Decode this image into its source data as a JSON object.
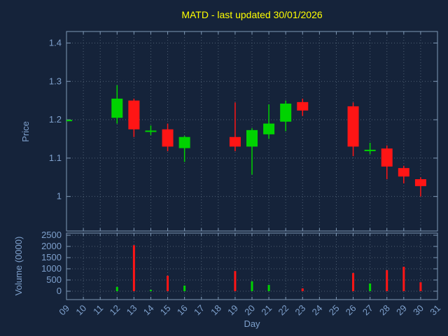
{
  "colors": {
    "background": "#15233a",
    "frame": "#7e98b5",
    "grid": "#4e5f73",
    "text": "#7ea0cc",
    "title": "#ffff00",
    "up": "#00d300",
    "down": "#ff1515"
  },
  "chart_data": {
    "type": "candlestick",
    "title": "MATD - last updated 30/01/2026",
    "xlabel": "Day",
    "x_ticks": [
      "09",
      "10",
      "11",
      "12",
      "13",
      "14",
      "15",
      "16",
      "17",
      "18",
      "19",
      "20",
      "21",
      "22",
      "23",
      "24",
      "25",
      "26",
      "27",
      "28",
      "29",
      "30",
      "31"
    ],
    "price_panel": {
      "ylabel": "Price",
      "y_ticks": [
        1,
        1.1,
        1.2,
        1.3,
        1.4
      ],
      "ylim": [
        0.91,
        1.43
      ],
      "grid": true,
      "candles": [
        {
          "day": 9,
          "open": 1.198,
          "high": 1.2,
          "low": 1.195,
          "close": 1.198
        },
        {
          "day": 12,
          "open": 1.205,
          "high": 1.29,
          "low": 1.19,
          "close": 1.255
        },
        {
          "day": 13,
          "open": 1.25,
          "high": 1.255,
          "low": 1.155,
          "close": 1.175
        },
        {
          "day": 14,
          "open": 1.17,
          "high": 1.185,
          "low": 1.16,
          "close": 1.17
        },
        {
          "day": 15,
          "open": 1.175,
          "high": 1.19,
          "low": 1.118,
          "close": 1.13
        },
        {
          "day": 16,
          "open": 1.126,
          "high": 1.158,
          "low": 1.09,
          "close": 1.155
        },
        {
          "day": 19,
          "open": 1.155,
          "high": 1.245,
          "low": 1.118,
          "close": 1.13
        },
        {
          "day": 20,
          "open": 1.13,
          "high": 1.178,
          "low": 1.057,
          "close": 1.173
        },
        {
          "day": 21,
          "open": 1.162,
          "high": 1.24,
          "low": 1.15,
          "close": 1.19
        },
        {
          "day": 22,
          "open": 1.195,
          "high": 1.25,
          "low": 1.17,
          "close": 1.242
        },
        {
          "day": 23,
          "open": 1.246,
          "high": 1.255,
          "low": 1.21,
          "close": 1.224
        },
        {
          "day": 26,
          "open": 1.235,
          "high": 1.245,
          "low": 1.105,
          "close": 1.13
        },
        {
          "day": 27,
          "open": 1.12,
          "high": 1.14,
          "low": 1.11,
          "close": 1.12
        },
        {
          "day": 28,
          "open": 1.125,
          "high": 1.133,
          "low": 1.045,
          "close": 1.078
        },
        {
          "day": 29,
          "open": 1.074,
          "high": 1.08,
          "low": 1.034,
          "close": 1.052
        },
        {
          "day": 30,
          "open": 1.045,
          "high": 1.05,
          "low": 1.0,
          "close": 1.027
        }
      ]
    },
    "volume_panel": {
      "ylabel": "Volume (0000)",
      "y_ticks": [
        0,
        500,
        1000,
        1500,
        2000,
        2500
      ],
      "ylim": [
        -375,
        2595
      ],
      "grid": true,
      "bars": [
        {
          "day": 12,
          "value": 190,
          "direction": "up"
        },
        {
          "day": 13,
          "value": 2050,
          "direction": "down"
        },
        {
          "day": 14,
          "value": 60,
          "direction": "up"
        },
        {
          "day": 15,
          "value": 690,
          "direction": "down"
        },
        {
          "day": 16,
          "value": 250,
          "direction": "up"
        },
        {
          "day": 19,
          "value": 900,
          "direction": "down"
        },
        {
          "day": 20,
          "value": 440,
          "direction": "up"
        },
        {
          "day": 21,
          "value": 280,
          "direction": "up"
        },
        {
          "day": 23,
          "value": 125,
          "direction": "down"
        },
        {
          "day": 26,
          "value": 810,
          "direction": "down"
        },
        {
          "day": 27,
          "value": 345,
          "direction": "up"
        },
        {
          "day": 28,
          "value": 940,
          "direction": "down"
        },
        {
          "day": 29,
          "value": 1090,
          "direction": "down"
        },
        {
          "day": 30,
          "value": 400,
          "direction": "down"
        }
      ]
    }
  }
}
